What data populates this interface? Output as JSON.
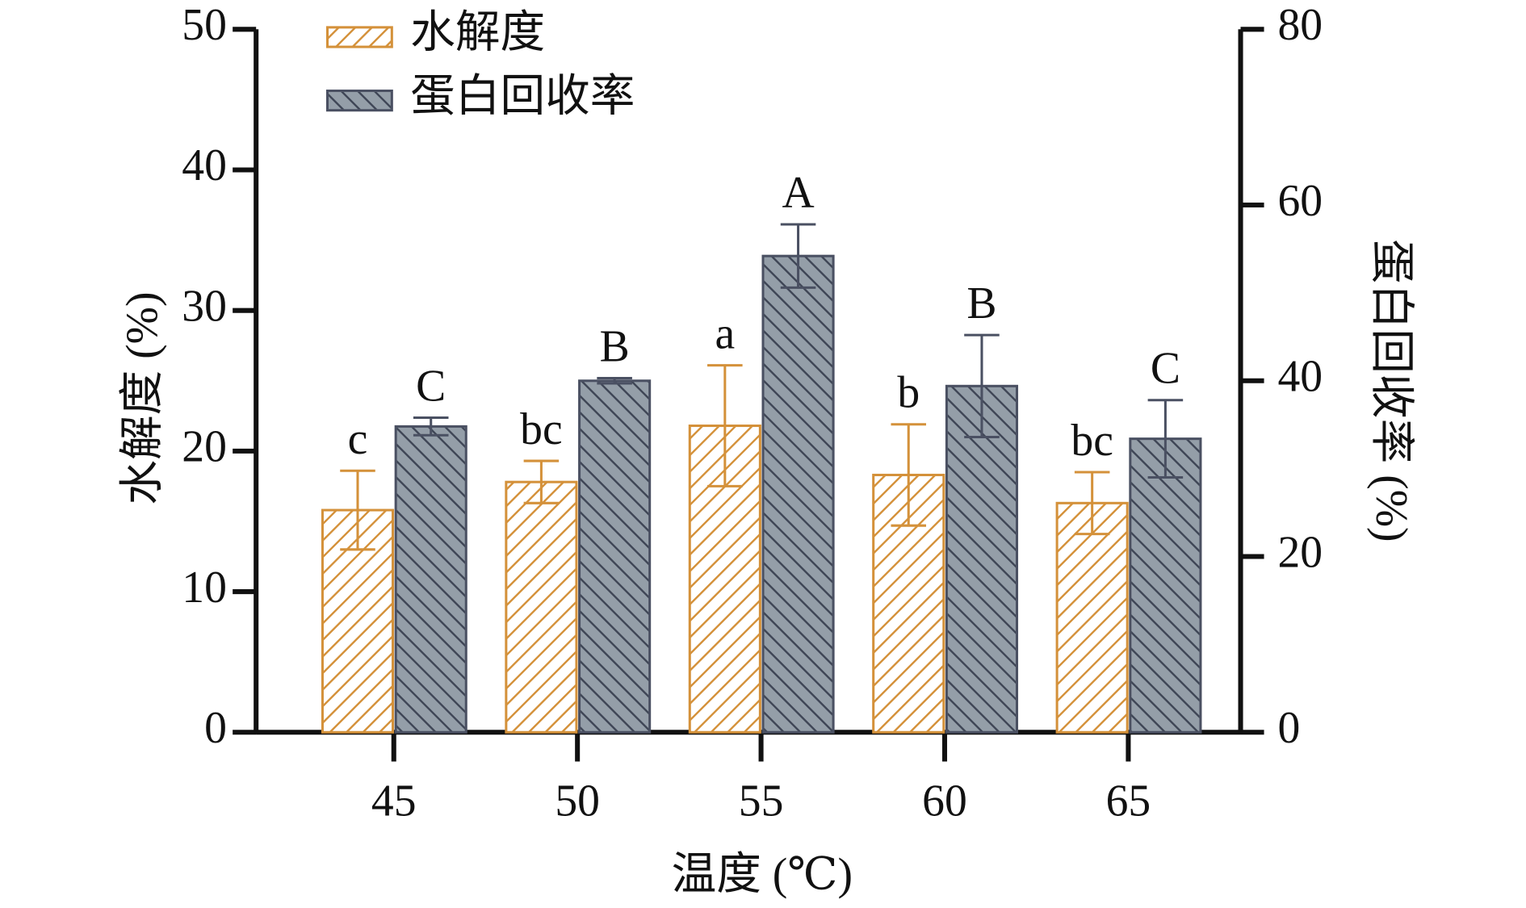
{
  "chart_data": {
    "type": "bar",
    "x_label": "温度 (℃)",
    "y_label": "水解度 (%)",
    "y2_label": "蛋白回收率 (%)",
    "categories": [
      "45",
      "50",
      "55",
      "60",
      "65"
    ],
    "ylim": [
      0,
      50
    ],
    "yticks": [
      0,
      10,
      20,
      30,
      40,
      50
    ],
    "y2lim": [
      0,
      80
    ],
    "y2ticks": [
      0,
      20,
      40,
      60,
      80
    ],
    "legend": "top-left",
    "series": [
      {
        "name": "水解度",
        "color": "#d4913a",
        "values": [
          15.8,
          17.8,
          21.8,
          18.3,
          16.3
        ],
        "errors": [
          2.8,
          1.5,
          4.3,
          3.6,
          2.2
        ],
        "letters": [
          "c",
          "bc",
          "a",
          "b",
          "bc"
        ]
      },
      {
        "name": "蛋白回收率",
        "color": "#4a5062",
        "axis": "y2",
        "values": [
          34.8,
          40.0,
          54.2,
          39.4,
          33.4
        ],
        "errors": [
          1.0,
          0.3,
          3.6,
          5.8,
          4.4
        ],
        "letters": [
          "C",
          "B",
          "A",
          "B",
          "C"
        ]
      }
    ]
  }
}
